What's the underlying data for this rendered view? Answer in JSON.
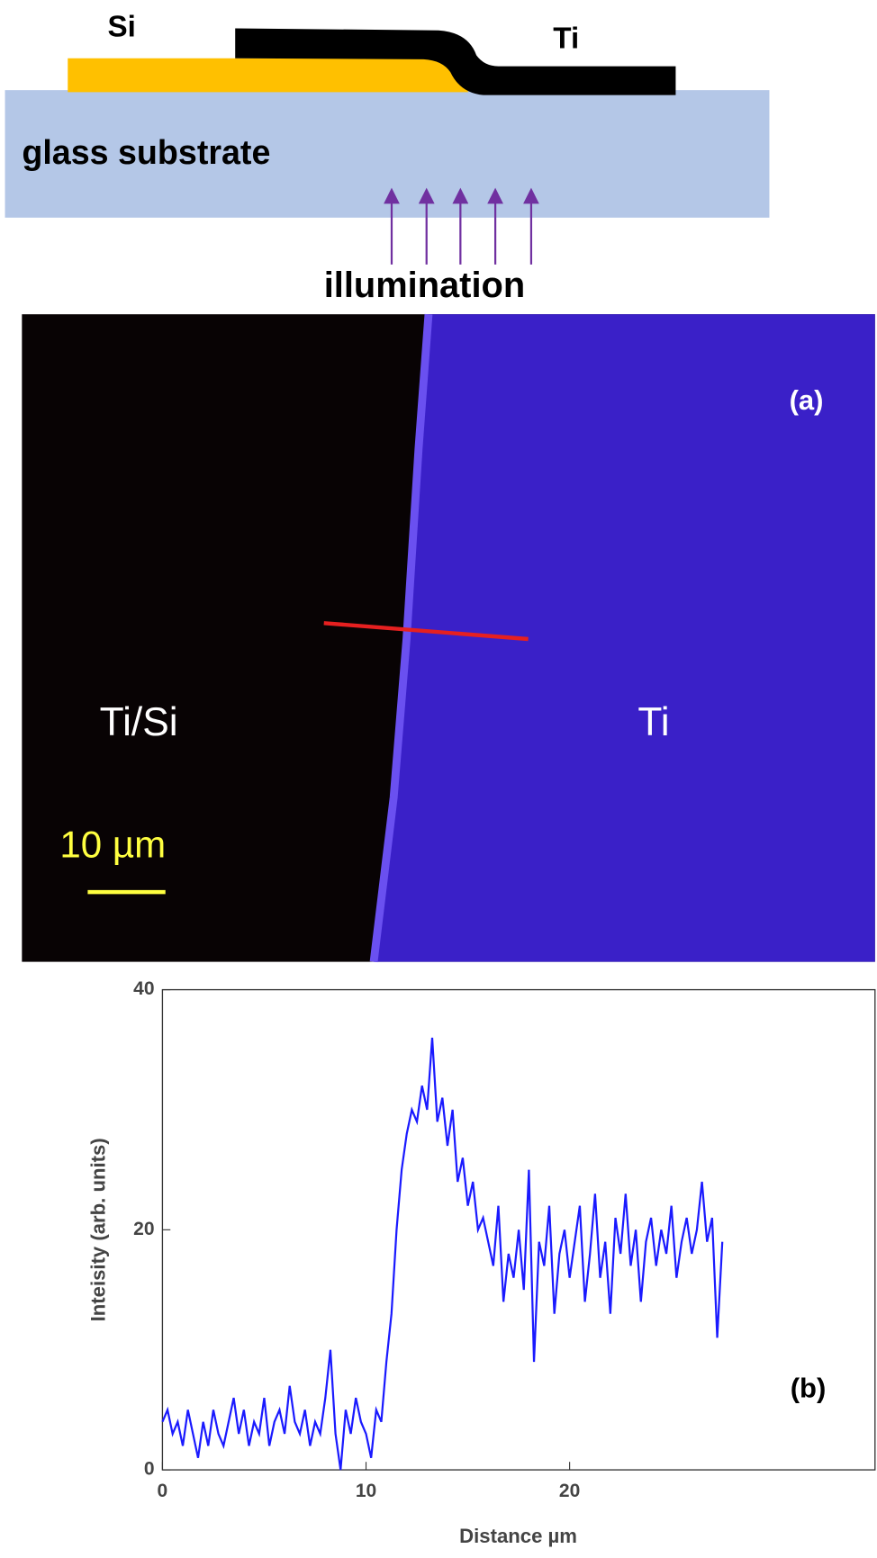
{
  "diagram": {
    "si_label": "Si",
    "ti_label": "Ti",
    "substrate_label": "glass substrate",
    "illumination_label": "illumination"
  },
  "micrograph": {
    "panel_label": "(a)",
    "left_label": "Ti/Si",
    "right_label": "Ti",
    "scale_label": "10 µm"
  },
  "chart_data": {
    "type": "line",
    "panel_label": "(b)",
    "x_label": "Distance µm",
    "y_label": "Inteisity (arb. units)",
    "xlim": [
      0,
      35
    ],
    "xticks": [
      0,
      10,
      20
    ],
    "ylim": [
      0,
      40
    ],
    "yticks": [
      0,
      20,
      40
    ],
    "x": [
      0,
      0.25,
      0.5,
      0.75,
      1,
      1.25,
      1.5,
      1.75,
      2,
      2.25,
      2.5,
      2.75,
      3,
      3.25,
      3.5,
      3.75,
      4,
      4.25,
      4.5,
      4.75,
      5,
      5.25,
      5.5,
      5.75,
      6,
      6.25,
      6.5,
      6.75,
      7,
      7.25,
      7.5,
      7.75,
      8,
      8.25,
      8.5,
      8.75,
      9,
      9.25,
      9.5,
      9.75,
      10,
      10.25,
      10.5,
      10.75,
      11,
      11.25,
      11.5,
      11.75,
      12,
      12.25,
      12.5,
      12.75,
      13,
      13.25,
      13.5,
      13.75,
      14,
      14.25,
      14.5,
      14.75,
      15,
      15.25,
      15.5,
      15.75,
      16,
      16.25,
      16.5,
      16.75,
      17,
      17.25,
      17.5,
      17.75,
      18,
      18.25,
      18.5,
      18.75,
      19,
      19.25,
      19.5,
      19.75,
      20,
      20.25,
      20.5,
      20.75,
      21,
      21.25,
      21.5,
      21.75,
      22,
      22.25,
      22.5,
      22.75,
      23,
      23.25,
      23.5,
      23.75,
      24,
      24.25,
      24.5,
      24.75,
      25,
      25.25,
      25.5,
      25.75,
      26,
      26.25,
      26.5,
      26.75,
      27,
      27.25,
      27.5
    ],
    "series": [
      {
        "color": "#1a1aff",
        "values": [
          4,
          5,
          3,
          4,
          2,
          5,
          3,
          1,
          4,
          2,
          5,
          3,
          2,
          4,
          6,
          3,
          5,
          2,
          4,
          3,
          6,
          2,
          4,
          5,
          3,
          7,
          4,
          3,
          5,
          2,
          4,
          3,
          6,
          10,
          3,
          0,
          5,
          3,
          6,
          4,
          3,
          1,
          5,
          4,
          9,
          13,
          20,
          25,
          28,
          30,
          29,
          32,
          30,
          36,
          29,
          31,
          27,
          30,
          24,
          26,
          22,
          24,
          20,
          21,
          19,
          17,
          22,
          14,
          18,
          16,
          20,
          15,
          25,
          9,
          19,
          17,
          22,
          13,
          18,
          20,
          16,
          19,
          22,
          14,
          18,
          23,
          16,
          19,
          13,
          21,
          18,
          23,
          17,
          20,
          14,
          19,
          21,
          17,
          20,
          18,
          22,
          16,
          19,
          21,
          18,
          20,
          24,
          19,
          21,
          11,
          19
        ]
      }
    ]
  }
}
